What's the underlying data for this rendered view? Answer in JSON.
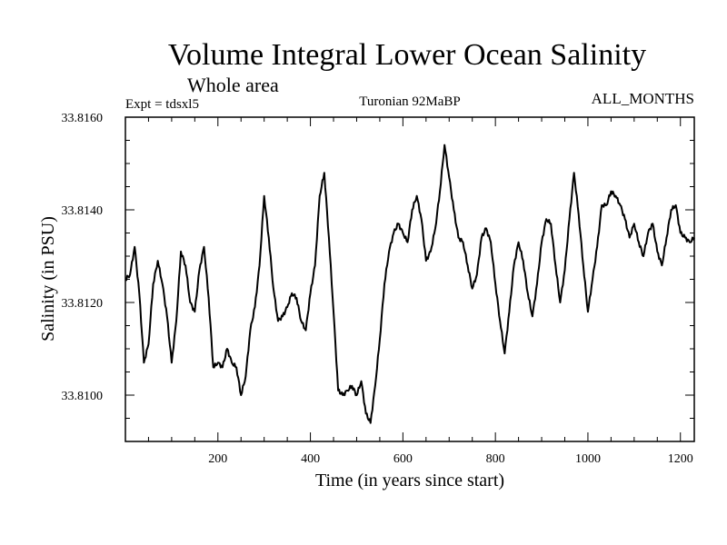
{
  "chart_data": {
    "type": "line",
    "title": "Volume Integral Lower Ocean Salinity",
    "subtitle": "Whole area",
    "expt_label": "Expt = tdsxl5",
    "center_label": "Turonian  92MaBP",
    "right_label": "ALL_MONTHS",
    "xlabel": "Time (in years since start)",
    "ylabel": "Salinity (in PSU)",
    "xlim": [
      0,
      1230
    ],
    "ylim": [
      33.809,
      33.816
    ],
    "x_ticks": [
      200,
      400,
      600,
      800,
      1000,
      1200
    ],
    "x_tick_labels": [
      "200",
      "400",
      "600",
      "800",
      "1000",
      "1200"
    ],
    "y_ticks": [
      33.81,
      33.812,
      33.814,
      33.816
    ],
    "y_tick_labels": [
      "33.8100",
      "33.8120",
      "33.8140",
      "33.8160"
    ],
    "series": [
      {
        "name": "Salinity",
        "color": "#000000",
        "x": [
          0,
          10,
          20,
          30,
          40,
          50,
          60,
          70,
          80,
          90,
          100,
          110,
          120,
          130,
          140,
          150,
          160,
          170,
          180,
          190,
          200,
          210,
          220,
          230,
          240,
          250,
          260,
          270,
          280,
          290,
          300,
          310,
          320,
          330,
          340,
          350,
          360,
          370,
          380,
          390,
          400,
          410,
          420,
          430,
          440,
          450,
          460,
          470,
          480,
          490,
          500,
          510,
          520,
          530,
          540,
          550,
          560,
          570,
          580,
          590,
          600,
          610,
          620,
          630,
          640,
          650,
          660,
          670,
          680,
          690,
          700,
          710,
          720,
          730,
          740,
          750,
          760,
          770,
          780,
          790,
          800,
          810,
          820,
          830,
          840,
          850,
          860,
          870,
          880,
          890,
          900,
          910,
          920,
          930,
          940,
          950,
          960,
          970,
          980,
          990,
          1000,
          1010,
          1020,
          1030,
          1040,
          1050,
          1060,
          1070,
          1080,
          1090,
          1100,
          1110,
          1120,
          1130,
          1140,
          1150,
          1160,
          1170,
          1180,
          1190,
          1200,
          1210,
          1220,
          1230
        ],
        "values": [
          33.8125,
          33.8126,
          33.8132,
          33.8122,
          33.8107,
          33.8111,
          33.8124,
          33.8129,
          33.8124,
          33.8117,
          33.8107,
          33.8116,
          33.8131,
          33.8128,
          33.812,
          33.8118,
          33.8127,
          33.8132,
          33.8121,
          33.8106,
          33.8107,
          33.8106,
          33.811,
          33.8107,
          33.8106,
          33.81,
          33.8104,
          33.8114,
          33.8119,
          33.8128,
          33.8143,
          33.8134,
          33.8123,
          33.8116,
          33.8117,
          33.8119,
          33.8122,
          33.8121,
          33.8116,
          33.8114,
          33.8122,
          33.8128,
          33.8143,
          33.8148,
          33.8134,
          33.8118,
          33.8101,
          33.81,
          33.8101,
          33.8102,
          33.81,
          33.8103,
          33.8096,
          33.8094,
          33.8102,
          33.8112,
          33.8124,
          33.8131,
          33.8135,
          33.8137,
          33.8135,
          33.8133,
          33.814,
          33.8143,
          33.8138,
          33.8129,
          33.8131,
          33.8136,
          33.8144,
          33.8154,
          33.8147,
          33.814,
          33.8134,
          33.8133,
          33.8128,
          33.8123,
          33.8126,
          33.8134,
          33.8136,
          33.8133,
          33.8124,
          33.8116,
          33.8109,
          33.8118,
          33.8128,
          33.8133,
          33.8129,
          33.8122,
          33.8117,
          33.8124,
          33.8133,
          33.8138,
          33.8137,
          33.8128,
          33.812,
          33.8127,
          33.8138,
          33.8148,
          33.8139,
          33.8128,
          33.8118,
          33.8125,
          33.8132,
          33.8141,
          33.8141,
          33.8144,
          33.8143,
          33.8141,
          33.8138,
          33.8134,
          33.8137,
          33.8133,
          33.813,
          33.8135,
          33.8137,
          33.8131,
          33.8128,
          33.8134,
          33.814,
          33.8141,
          33.8135,
          33.8134,
          33.8133,
          33.8134
        ]
      }
    ]
  }
}
